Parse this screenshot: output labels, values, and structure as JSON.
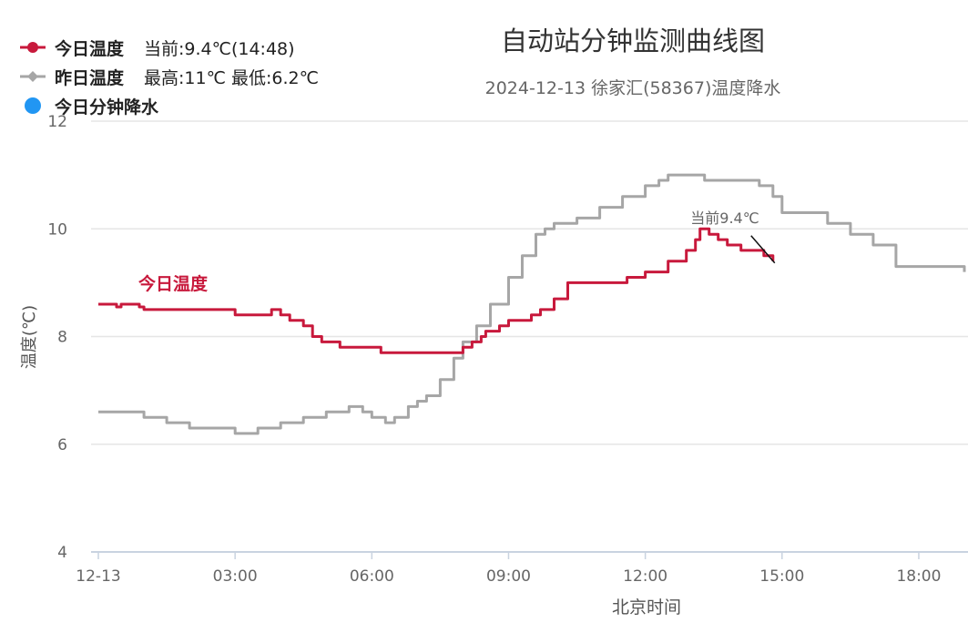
{
  "chart_data": {
    "type": "line",
    "title": "自动站分钟监测曲线图",
    "subtitle": "2024-12-13 徐家汇(58367)温度降水",
    "xlabel": "北京时间",
    "ylabel": "温度(℃)",
    "ylim": [
      4,
      12
    ],
    "yticks": [
      "4",
      "6",
      "8",
      "10",
      "12"
    ],
    "xlim_hours": [
      0,
      19.08
    ],
    "xticks": [
      "12-13",
      "03:00",
      "06:00",
      "09:00",
      "12:00",
      "15:00",
      "18:00"
    ],
    "grid": true,
    "legend_position": "top-left",
    "legend": [
      {
        "name": "今日温度",
        "info": "当前:9.4℃(14:48)",
        "color": "#c8193c",
        "marker": "circle"
      },
      {
        "name": "昨日温度",
        "info": "最高:11℃ 最低:6.2℃",
        "color": "#a6a6a6",
        "marker": "diamond"
      },
      {
        "name": "今日分钟降水",
        "info": "",
        "color": "#2196f3",
        "marker": "dot"
      }
    ],
    "series_label": "今日温度",
    "annotation": "当前9.4℃",
    "series": [
      {
        "name": "今日温度",
        "color": "#c8193c",
        "x": [
          0,
          0.3,
          0.4,
          0.5,
          0.7,
          0.9,
          1.0,
          1.2,
          2.0,
          2.7,
          3.0,
          3.5,
          3.8,
          4.0,
          4.2,
          4.5,
          4.7,
          4.9,
          5.3,
          6.0,
          6.2,
          7.0,
          7.4,
          7.8,
          8.0,
          8.2,
          8.4,
          8.5,
          8.8,
          9.0,
          9.2,
          9.5,
          9.7,
          10.0,
          10.3,
          11.0,
          11.6,
          12.0,
          12.5,
          12.8,
          12.9,
          13.1,
          13.2,
          13.4,
          13.6,
          13.8,
          14.1,
          14.4,
          14.6,
          14.8
        ],
        "y": [
          8.6,
          8.6,
          8.55,
          8.6,
          8.6,
          8.55,
          8.5,
          8.5,
          8.5,
          8.5,
          8.4,
          8.4,
          8.5,
          8.4,
          8.3,
          8.2,
          8.0,
          7.9,
          7.8,
          7.8,
          7.7,
          7.7,
          7.7,
          7.7,
          7.8,
          7.9,
          8.0,
          8.1,
          8.2,
          8.3,
          8.3,
          8.4,
          8.5,
          8.7,
          9.0,
          9.0,
          9.1,
          9.2,
          9.4,
          9.4,
          9.6,
          9.8,
          10.0,
          9.9,
          9.8,
          9.7,
          9.6,
          9.6,
          9.5,
          9.4
        ]
      },
      {
        "name": "昨日温度",
        "color": "#a6a6a6",
        "x": [
          0,
          0.4,
          1.0,
          1.5,
          2.0,
          2.3,
          3.0,
          3.5,
          4.0,
          4.5,
          5.0,
          5.3,
          5.5,
          5.8,
          6.0,
          6.3,
          6.5,
          6.8,
          7.0,
          7.2,
          7.5,
          7.8,
          8.0,
          8.3,
          8.6,
          9.0,
          9.3,
          9.6,
          9.8,
          10.0,
          10.5,
          11.0,
          11.5,
          12.0,
          12.3,
          12.5,
          13.0,
          13.3,
          14.0,
          14.5,
          14.8,
          15.0,
          15.5,
          16.0,
          16.5,
          17.0,
          17.5,
          18.0,
          18.5,
          19.0
        ],
        "y": [
          6.6,
          6.6,
          6.5,
          6.4,
          6.3,
          6.3,
          6.2,
          6.3,
          6.4,
          6.5,
          6.6,
          6.6,
          6.7,
          6.6,
          6.5,
          6.4,
          6.5,
          6.7,
          6.8,
          6.9,
          7.2,
          7.6,
          7.9,
          8.2,
          8.6,
          9.1,
          9.5,
          9.9,
          10.0,
          10.1,
          10.2,
          10.4,
          10.6,
          10.8,
          10.9,
          11.0,
          11.0,
          10.9,
          10.9,
          10.8,
          10.6,
          10.3,
          10.3,
          10.1,
          9.9,
          9.7,
          9.3,
          9.3,
          9.3,
          9.2
        ]
      }
    ]
  }
}
